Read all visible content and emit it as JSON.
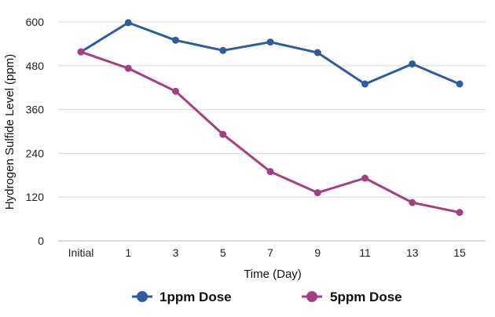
{
  "chart_data": {
    "type": "line",
    "title": "",
    "xlabel": "Time (Day)",
    "ylabel": "Hydrogen Sulfide Level (ppm)",
    "categories": [
      "Initial",
      "1",
      "3",
      "5",
      "7",
      "9",
      "11",
      "13",
      "15"
    ],
    "ylim": [
      0,
      600
    ],
    "yticks": [
      "0",
      "120",
      "240",
      "360",
      "480",
      "600"
    ],
    "grid": "horizontal",
    "legend_position": "bottom",
    "series": [
      {
        "name": "1ppm Dose",
        "color": "#2e5c9e",
        "values": [
          518,
          598,
          550,
          522,
          545,
          516,
          430,
          485,
          430
        ]
      },
      {
        "name": "5ppm Dose",
        "color": "#a4407f",
        "values": [
          518,
          473,
          410,
          292,
          190,
          132,
          172,
          105,
          78
        ]
      }
    ]
  }
}
